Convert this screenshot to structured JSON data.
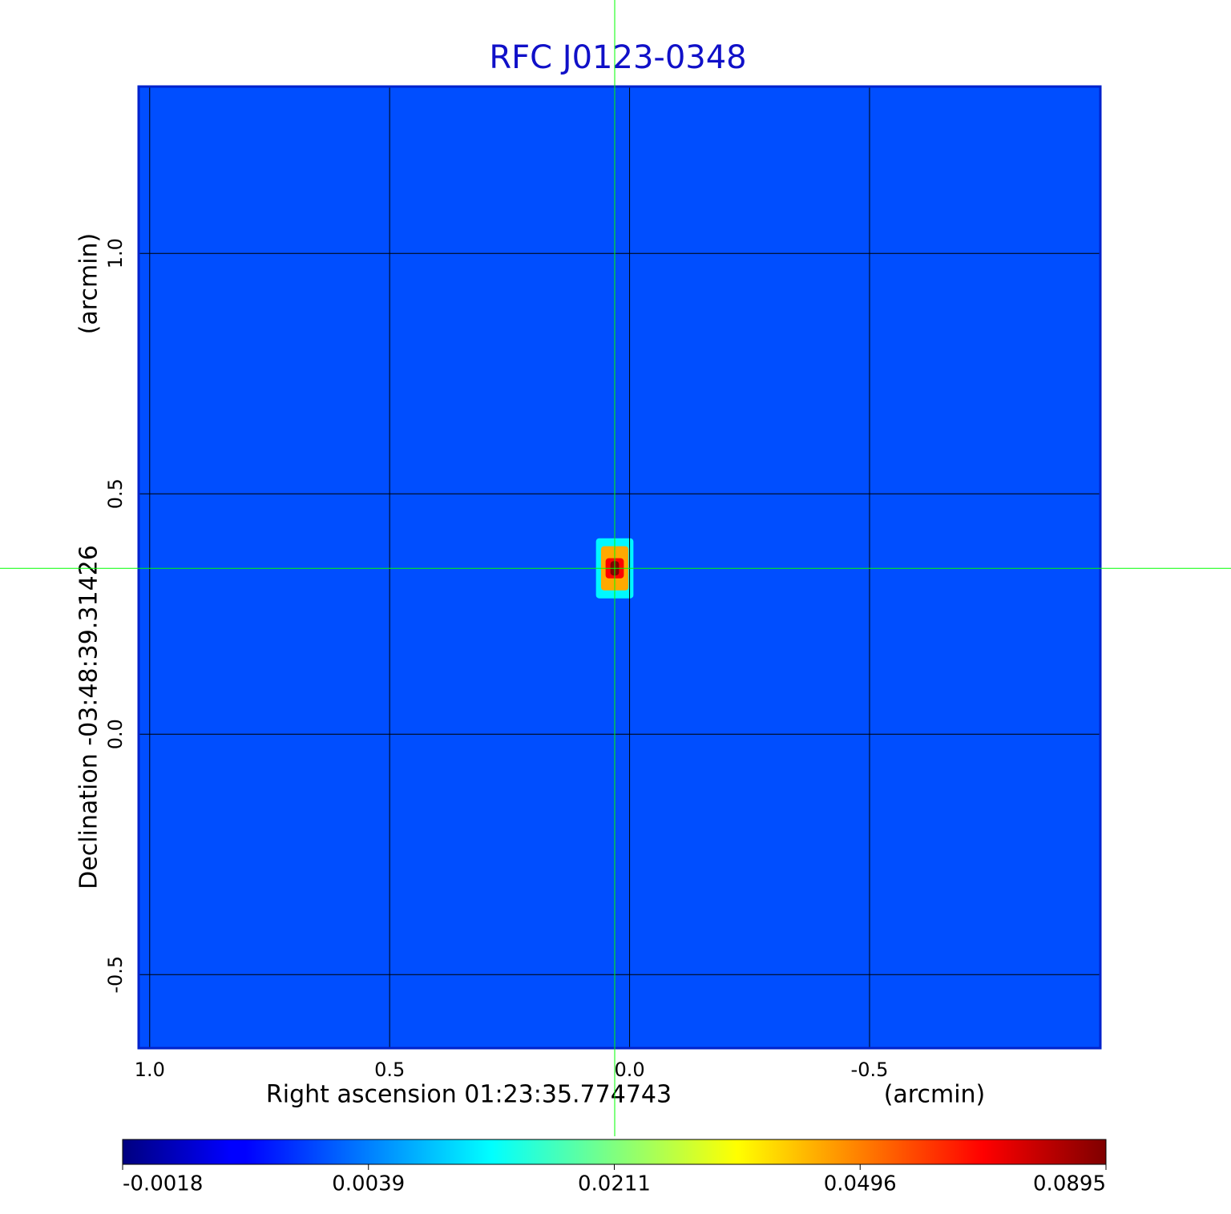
{
  "chart_data": {
    "type": "image",
    "title": "RFC J0123-0348",
    "x_label": "Right ascension  01:23:35.774743",
    "x_unit": "(arcmin)",
    "y_label": "Declination  -03:48:39.31426",
    "y_unit": "(arcmin)",
    "xlim": [
      1.023,
      -0.981
    ],
    "ylim": [
      -0.653,
      1.347
    ],
    "xticks": [
      {
        "value": 1,
        "label": "1.0"
      },
      0.5,
      {
        "value": 0,
        "label": "0.0"
      },
      -0.5
    ],
    "yticks": [
      {
        "value": 1,
        "label": "1.0"
      },
      0.5,
      {
        "value": 0,
        "label": "0.0"
      },
      -0.5
    ],
    "grid": true,
    "background_value": 0.0028,
    "source": {
      "x": 0.031,
      "y": 0.345,
      "components": [
        {
          "value": 0.012,
          "width": 0.078,
          "height": 0.125
        },
        {
          "value": 0.045,
          "width": 0.057,
          "height": 0.092
        },
        {
          "value": 0.07,
          "width": 0.038,
          "height": 0.042
        },
        {
          "value": 0.0895,
          "width": 0.018,
          "height": 0.03
        }
      ]
    },
    "crosshair": {
      "x": 0.031,
      "y": 0.345,
      "color": "#00ff00"
    },
    "colorbar": {
      "colormap": "jet",
      "ticks": [
        -0.0018,
        0.0039,
        0.0211,
        0.0496,
        0.0895
      ]
    }
  }
}
